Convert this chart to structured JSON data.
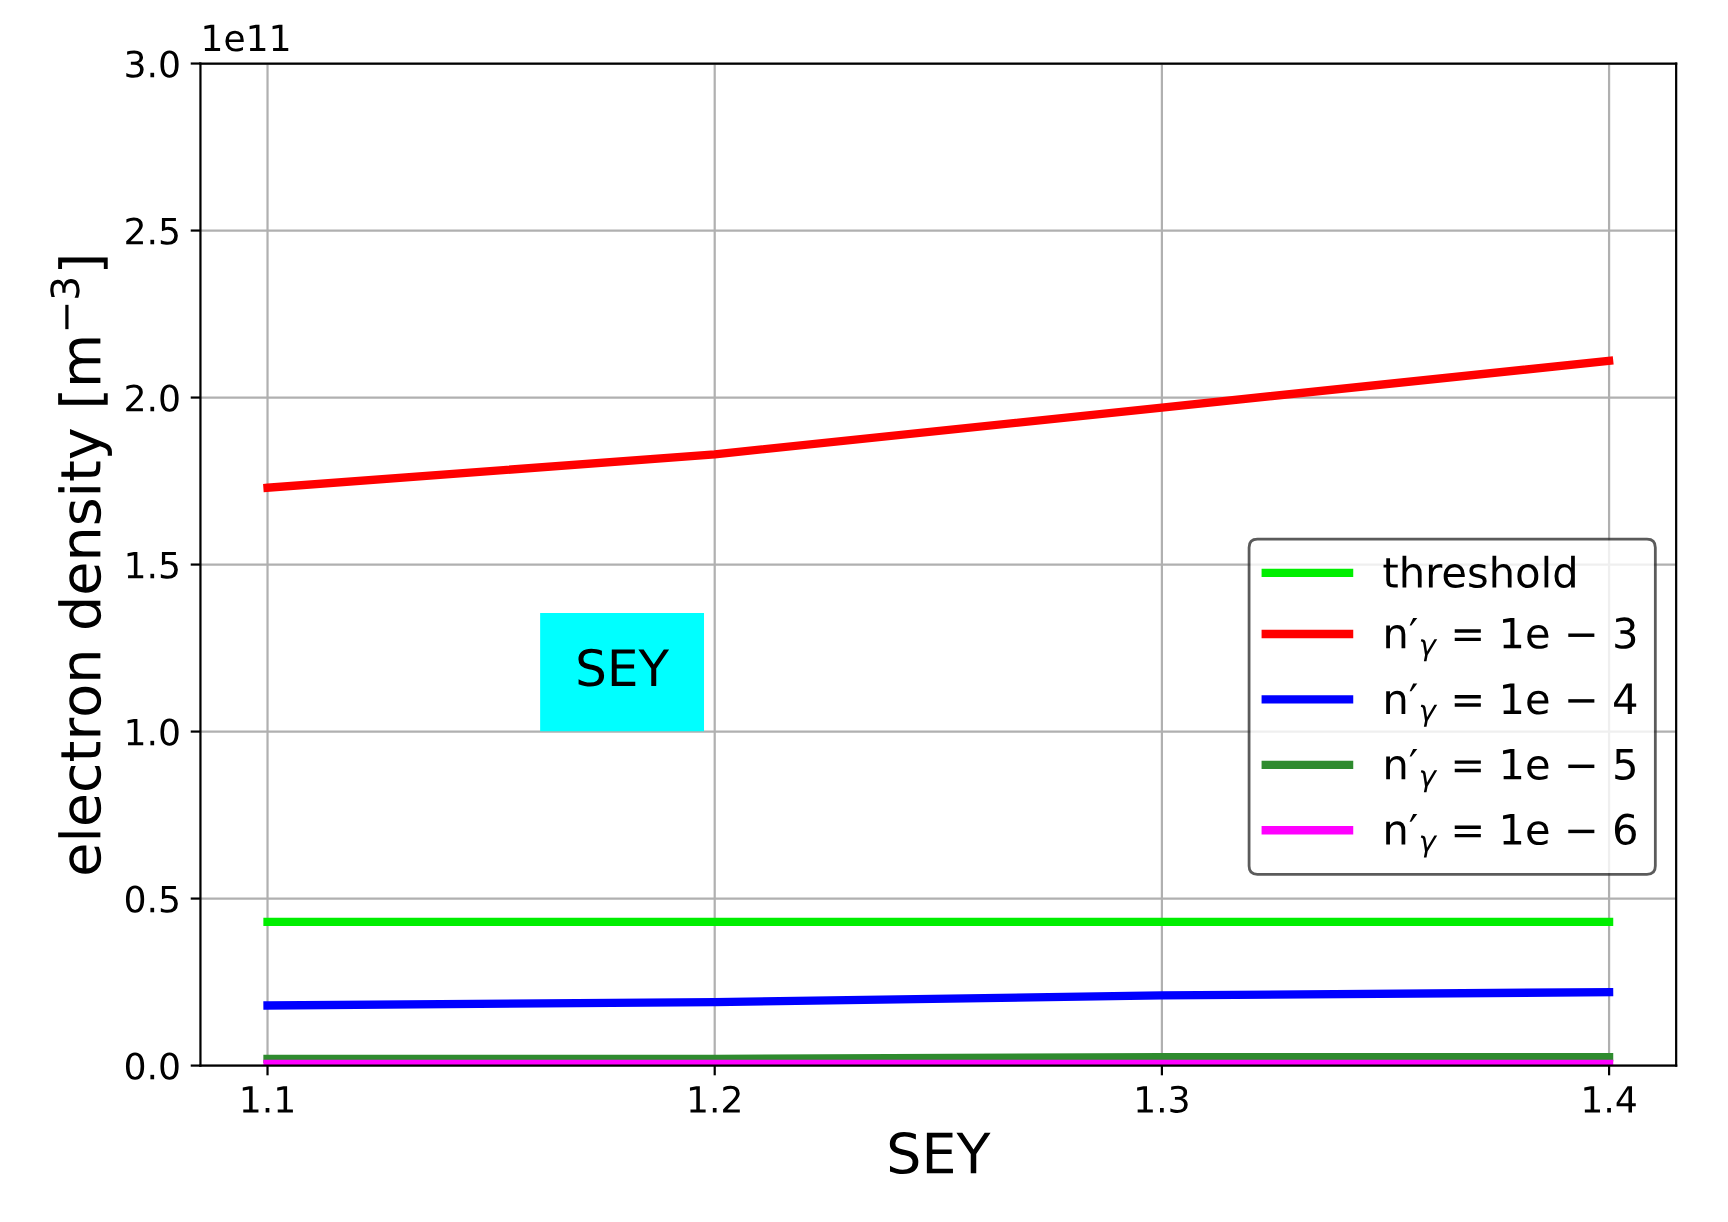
{
  "chart_data": {
    "type": "line",
    "xlabel": "SEY",
    "ylabel": "electron density [m$^{−3}$]",
    "x": [
      1.1,
      1.2,
      1.3,
      1.4
    ],
    "series": [
      {
        "name": "threshold",
        "color": "#00ee00",
        "values": [
          0.43,
          0.43,
          0.43,
          0.43
        ]
      },
      {
        "name": "n′$_{γ}$ = 1e − 3",
        "color": "#ff0000",
        "values": [
          1.73,
          1.83,
          1.97,
          2.11
        ]
      },
      {
        "name": "n′$_{γ}$ = 1e − 4",
        "color": "#0000ff",
        "values": [
          0.18,
          0.19,
          0.21,
          0.22
        ]
      },
      {
        "name": "n′$_{γ}$ = 1e − 5",
        "color": "#2e8b2e",
        "values": [
          0.02,
          0.02,
          0.025,
          0.025
        ]
      },
      {
        "name": "n′$_{γ}$ = 1e − 6",
        "color": "#ff00ff",
        "values": [
          0.005,
          0.005,
          0.005,
          0.005
        ]
      }
    ],
    "xlim": [
      1.085,
      1.415
    ],
    "xticks": [
      1.1,
      1.2,
      1.3,
      1.4
    ],
    "ylim": [
      0,
      3.0
    ],
    "yticks": [
      {
        "value": 0,
        "label": "0.0"
      },
      0.5,
      {
        "value": 1,
        "label": "1.0"
      },
      1.5,
      {
        "value": 2,
        "label": "2.0"
      },
      2.5,
      {
        "value": 3,
        "label": "3.0"
      }
    ],
    "annotations": [
      "1e11",
      "SEY"
    ],
    "grid": true,
    "legend": "right",
    "marker": "none",
    "line_style": "solid"
  }
}
